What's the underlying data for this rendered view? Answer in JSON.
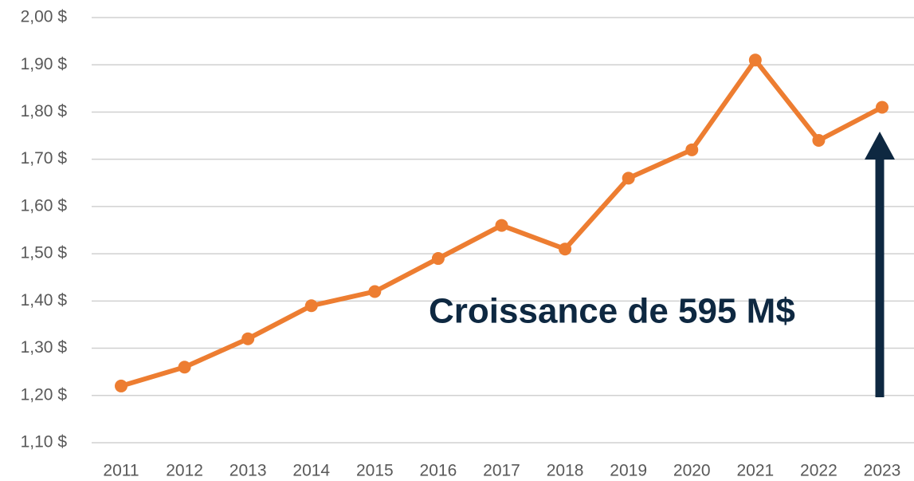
{
  "chart_data": {
    "type": "line",
    "categories": [
      "2011",
      "2012",
      "2013",
      "2014",
      "2015",
      "2016",
      "2017",
      "2018",
      "2019",
      "2020",
      "2021",
      "2022",
      "2023"
    ],
    "values": [
      1.22,
      1.26,
      1.32,
      1.39,
      1.42,
      1.49,
      1.56,
      1.51,
      1.66,
      1.72,
      1.91,
      1.74,
      1.81
    ],
    "color": "#ed7d31",
    "ylim": [
      1.1,
      2.0
    ],
    "yticks": [
      {
        "value": 1.1,
        "label": "1,10 $"
      },
      {
        "value": 1.2,
        "label": "1,20 $"
      },
      {
        "value": 1.3,
        "label": "1,30 $"
      },
      {
        "value": 1.4,
        "label": "1,40 $"
      },
      {
        "value": 1.5,
        "label": "1,50 $"
      },
      {
        "value": 1.6,
        "label": "1,60 $"
      },
      {
        "value": 1.7,
        "label": "1,70 $"
      },
      {
        "value": 1.8,
        "label": "1,80 $"
      },
      {
        "value": 1.9,
        "label": "1,90 $"
      },
      {
        "value": 2.0,
        "label": "2,00 $"
      }
    ],
    "grid": true,
    "annotation": "Croissance de 595 M$"
  }
}
